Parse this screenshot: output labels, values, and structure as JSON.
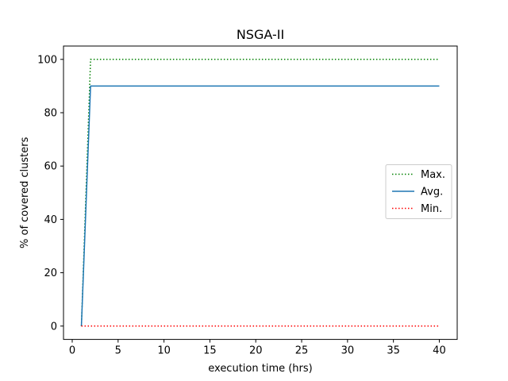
{
  "chart_data": {
    "type": "line",
    "title": "NSGA-II",
    "xlabel": "execution time (hrs)",
    "ylabel": "% of covered clusters",
    "xlim": [
      -0.95,
      41.95
    ],
    "ylim": [
      -5,
      105
    ],
    "xticks": [
      0,
      5,
      10,
      15,
      20,
      25,
      30,
      35,
      40
    ],
    "yticks": [
      0,
      20,
      40,
      60,
      80,
      100
    ],
    "grid": false,
    "legend": "center right",
    "series": [
      {
        "name": "Max.",
        "color": "#008000",
        "style": "dotted",
        "x": [
          1,
          2,
          40
        ],
        "values": [
          0,
          100,
          100
        ]
      },
      {
        "name": "Avg.",
        "color": "#1f77b4",
        "style": "solid",
        "x": [
          1,
          2,
          40
        ],
        "values": [
          0,
          90,
          90
        ]
      },
      {
        "name": "Min.",
        "color": "#ff0000",
        "style": "dotted",
        "x": [
          1,
          2,
          40
        ],
        "values": [
          0,
          0,
          0
        ]
      }
    ]
  }
}
